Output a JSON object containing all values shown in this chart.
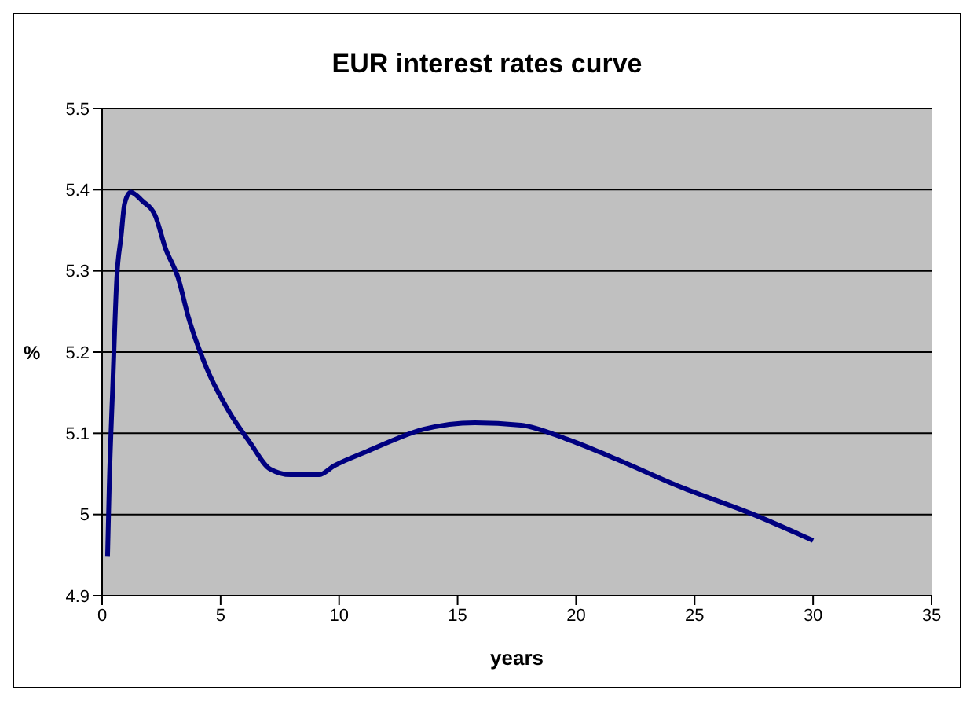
{
  "chart_data": {
    "type": "line",
    "title": "EUR interest rates curve",
    "xlabel": "years",
    "ylabel": "%",
    "x": [
      0.23,
      0.3,
      0.45,
      0.62,
      0.8,
      0.95,
      1.2,
      1.7,
      2.24,
      2.67,
      3.21,
      3.64,
      4.4,
      5.37,
      6.23,
      7.09,
      7.96,
      9.15,
      9.79,
      11.2,
      13.57,
      15.73,
      17.67,
      19.6,
      21.8,
      24.4,
      27.4,
      30
    ],
    "series": [
      {
        "color": "#000080",
        "values": [
          4.948,
          5.034,
          5.159,
          5.291,
          5.342,
          5.383,
          5.397,
          5.386,
          5.368,
          5.328,
          5.291,
          5.243,
          5.181,
          5.126,
          5.089,
          5.056,
          5.049,
          5.049,
          5.06,
          5.078,
          5.105,
          5.113,
          5.11,
          5.093,
          5.067,
          5.034,
          5.001,
          4.968
        ]
      }
    ],
    "xlim": [
      0,
      35
    ],
    "xticks": [
      0,
      5,
      10,
      15,
      20,
      25,
      30,
      35
    ],
    "ylim": [
      4.9,
      5.5
    ],
    "yticks": [
      4.9,
      {
        "value": 5,
        "label": "5"
      },
      5.1,
      5.2,
      5.3,
      5.4,
      5.5
    ],
    "grid": "y",
    "legend": false,
    "marker": "none",
    "line_style": "solid"
  }
}
